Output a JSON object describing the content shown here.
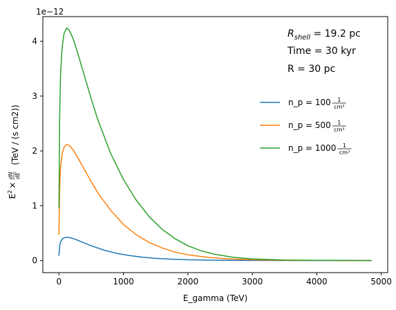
{
  "chart_data": {
    "type": "line",
    "title": "",
    "xlabel": "E_gamma (TeV)",
    "ylabel_math": {
      "base": "E",
      "sup": "2",
      "times": "×",
      "num": "dN",
      "den": "dE",
      "unit": "(TeV / (s cm2))"
    },
    "offset_text": "1e−12",
    "xlim": [
      -250,
      5100
    ],
    "ylim": [
      -0.22,
      4.45
    ],
    "x_ticks": [
      0,
      1000,
      2000,
      3000,
      4000,
      5000
    ],
    "x_tick_labels": [
      "0",
      "1000",
      "2000",
      "3000",
      "4000",
      "5000"
    ],
    "y_ticks": [
      0,
      1,
      2,
      3,
      4
    ],
    "y_tick_labels": [
      "0",
      "1",
      "2",
      "3",
      "4"
    ],
    "grid": false,
    "legend_position": "right",
    "annotations": [
      {
        "id": "rshell",
        "main": "R",
        "sub": "shell",
        "rest": " = 19.2 pc"
      },
      {
        "id": "time",
        "text": "Time = 30 kyr"
      },
      {
        "id": "radius",
        "text": "R = 30 pc"
      }
    ],
    "series": [
      {
        "name": "n_p = 100",
        "unit_num": "1",
        "unit_den": "cm³",
        "color": "#1f77b4",
        "points": [
          [
            0,
            0.09
          ],
          [
            10,
            0.26
          ],
          [
            25,
            0.34
          ],
          [
            50,
            0.39
          ],
          [
            80,
            0.415
          ],
          [
            120,
            0.425
          ],
          [
            180,
            0.415
          ],
          [
            250,
            0.39
          ],
          [
            350,
            0.34
          ],
          [
            500,
            0.27
          ],
          [
            700,
            0.19
          ],
          [
            900,
            0.13
          ],
          [
            1100,
            0.09
          ],
          [
            1300,
            0.06
          ],
          [
            1500,
            0.04
          ],
          [
            1700,
            0.027
          ],
          [
            2000,
            0.015
          ],
          [
            2300,
            0.008
          ],
          [
            2600,
            0.004
          ],
          [
            3000,
            0.002
          ],
          [
            3500,
            0.001
          ],
          [
            4000,
            0.0004
          ],
          [
            4850,
            0.0001
          ]
        ]
      },
      {
        "name": "n_p = 500",
        "unit_num": "1",
        "unit_den": "cm³",
        "color": "#ff7f0e",
        "points": [
          [
            0,
            0.47
          ],
          [
            10,
            1.3
          ],
          [
            25,
            1.7
          ],
          [
            50,
            1.95
          ],
          [
            80,
            2.07
          ],
          [
            120,
            2.12
          ],
          [
            160,
            2.1
          ],
          [
            220,
            2.02
          ],
          [
            300,
            1.86
          ],
          [
            400,
            1.65
          ],
          [
            500,
            1.44
          ],
          [
            600,
            1.24
          ],
          [
            800,
            0.92
          ],
          [
            1000,
            0.66
          ],
          [
            1200,
            0.47
          ],
          [
            1400,
            0.33
          ],
          [
            1600,
            0.23
          ],
          [
            1800,
            0.155
          ],
          [
            2000,
            0.105
          ],
          [
            2300,
            0.06
          ],
          [
            2600,
            0.033
          ],
          [
            3000,
            0.015
          ],
          [
            3500,
            0.006
          ],
          [
            4000,
            0.002
          ],
          [
            4850,
            0.0005
          ]
        ]
      },
      {
        "name": "n_p = 1000",
        "unit_num": "1",
        "unit_den": "cm³",
        "color": "#2ca02c",
        "points": [
          [
            0,
            0.95
          ],
          [
            10,
            2.6
          ],
          [
            25,
            3.4
          ],
          [
            50,
            3.9
          ],
          [
            80,
            4.15
          ],
          [
            120,
            4.24
          ],
          [
            160,
            4.2
          ],
          [
            220,
            4.05
          ],
          [
            300,
            3.75
          ],
          [
            400,
            3.35
          ],
          [
            500,
            2.95
          ],
          [
            600,
            2.58
          ],
          [
            800,
            1.96
          ],
          [
            1000,
            1.48
          ],
          [
            1200,
            1.1
          ],
          [
            1400,
            0.8
          ],
          [
            1600,
            0.57
          ],
          [
            1800,
            0.4
          ],
          [
            2000,
            0.27
          ],
          [
            2200,
            0.18
          ],
          [
            2400,
            0.12
          ],
          [
            2700,
            0.06
          ],
          [
            3000,
            0.03
          ],
          [
            3500,
            0.01
          ],
          [
            4000,
            0.004
          ],
          [
            4850,
            0.001
          ]
        ]
      }
    ]
  }
}
